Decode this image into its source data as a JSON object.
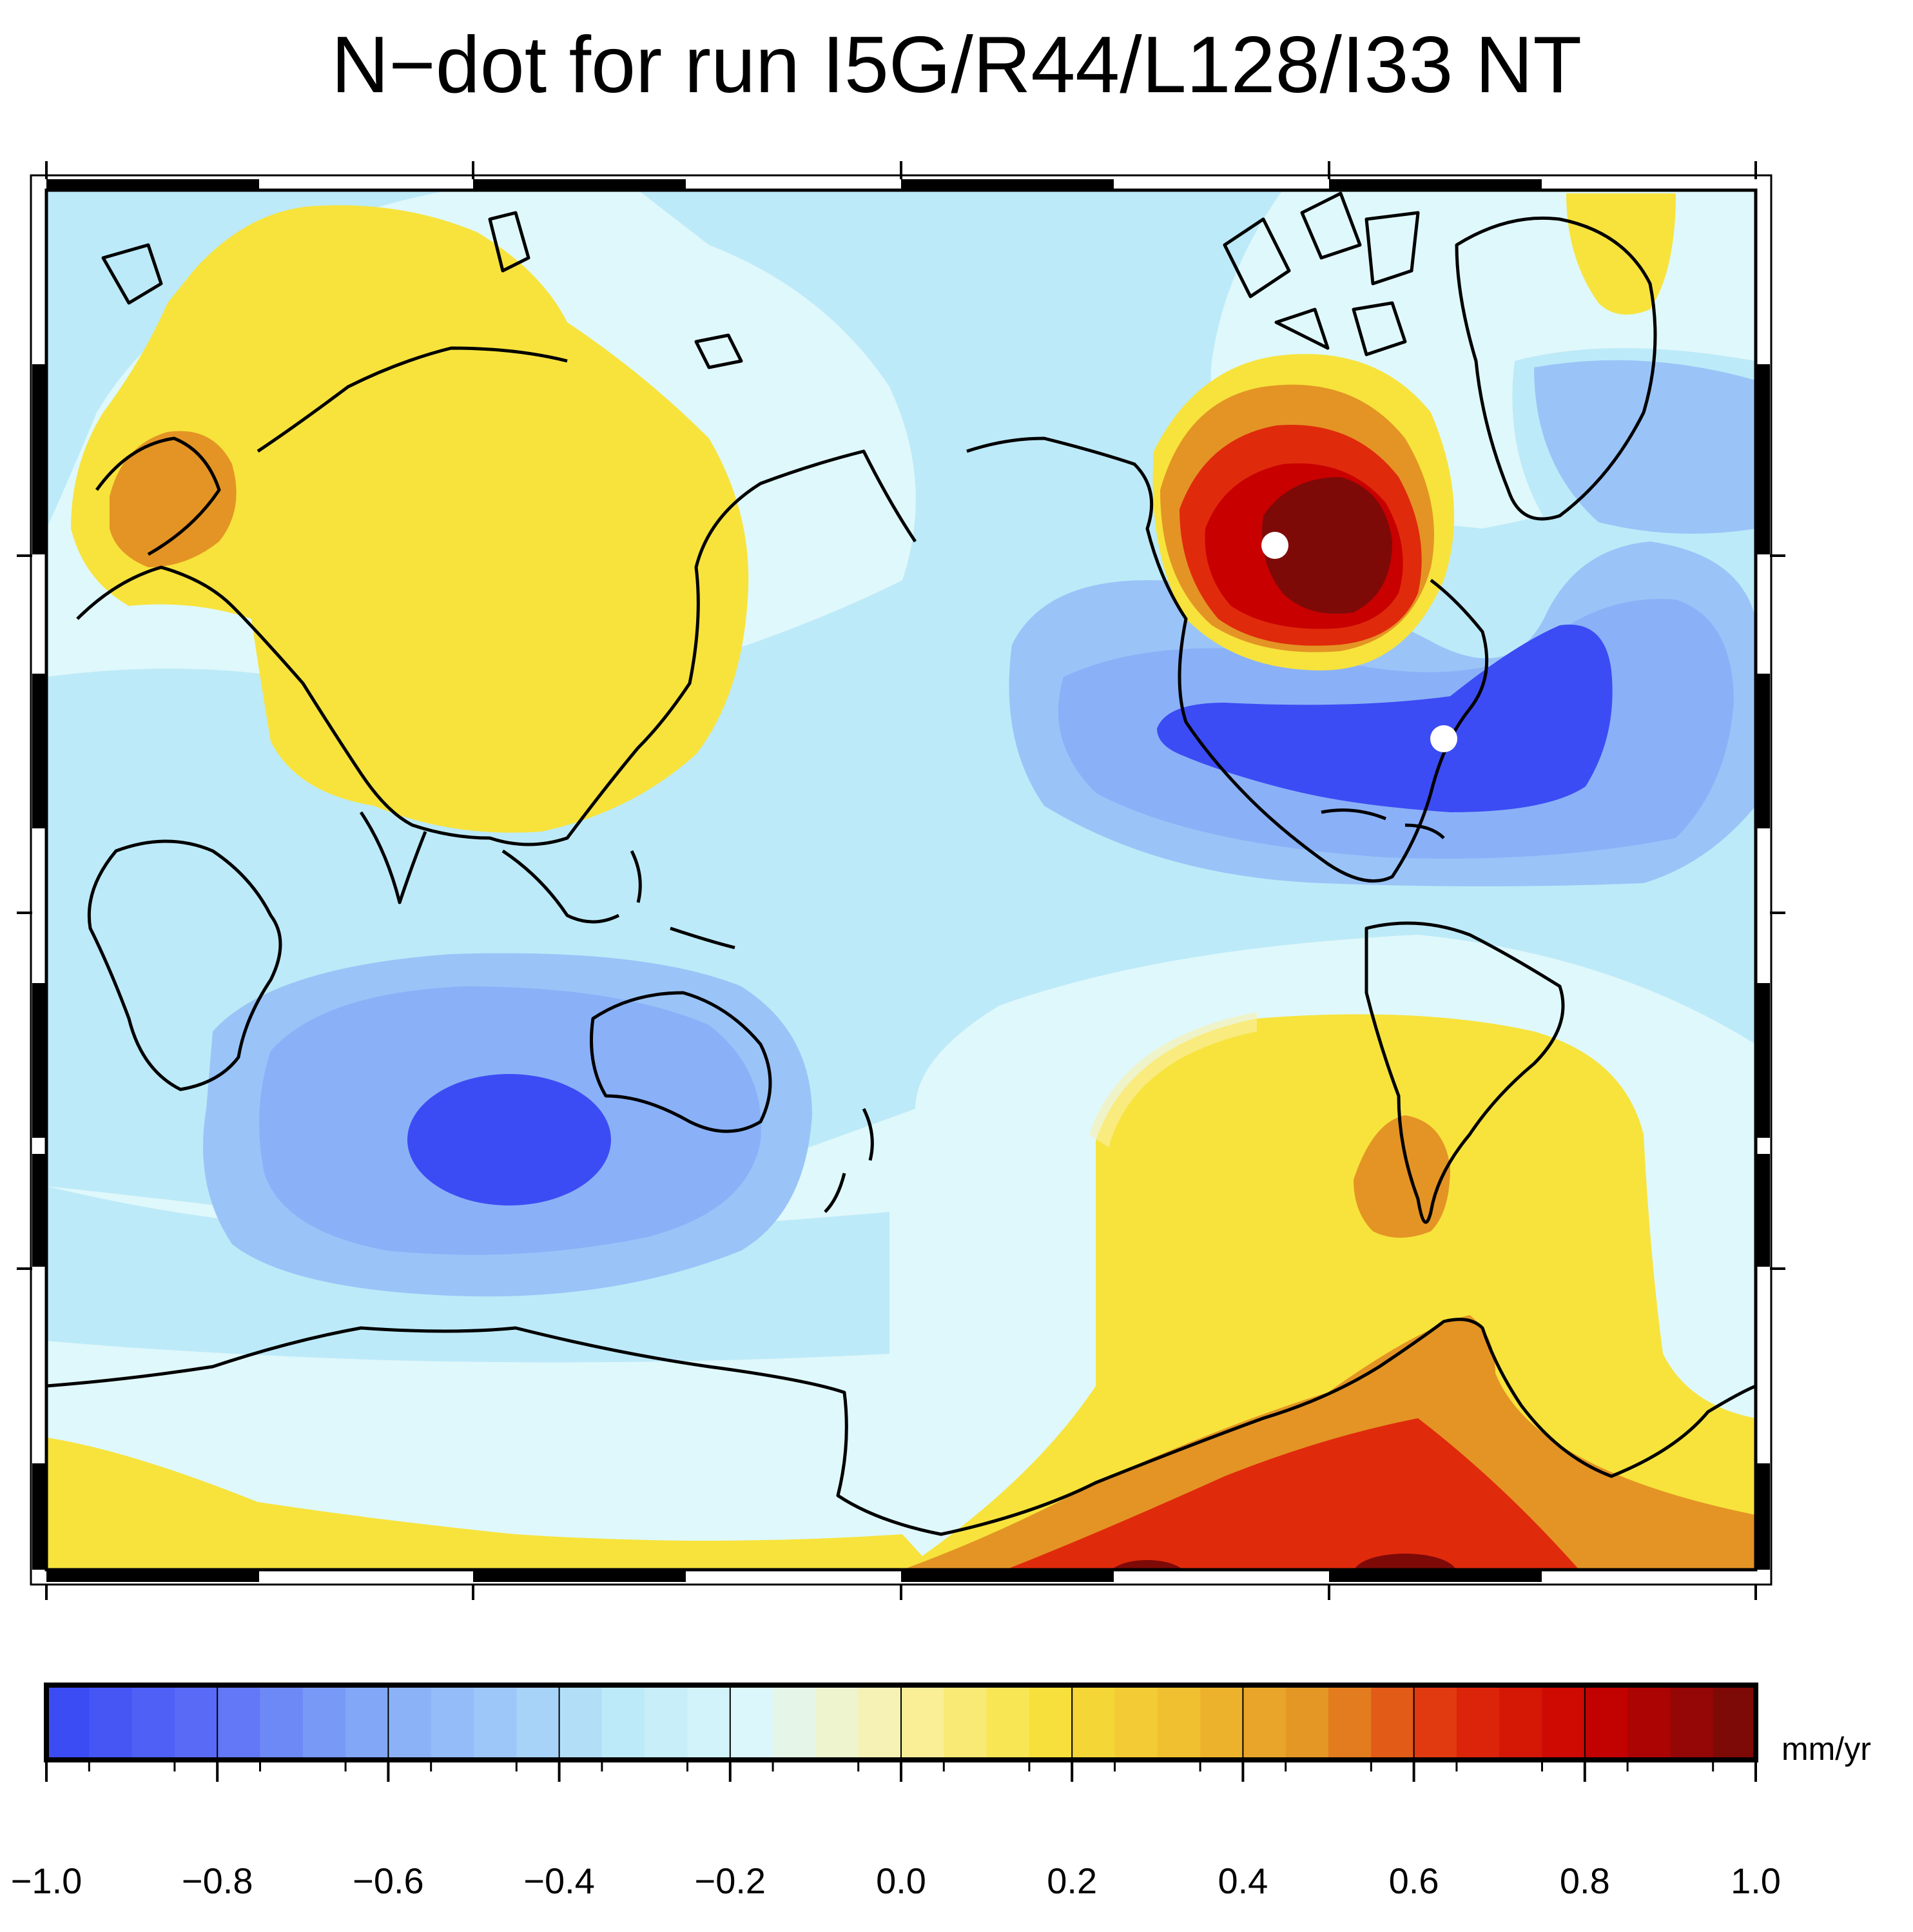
{
  "title": "N−dot for run I5G/R44/L128/I33 NT",
  "colorbar": {
    "unit": "mm/yr",
    "ticks": [
      "−1.0",
      "−0.8",
      "−0.6",
      "−0.4",
      "−0.2",
      "0.0",
      "0.2",
      "0.4",
      "0.6",
      "0.8",
      "1.0"
    ],
    "range": [
      -1.0,
      1.0
    ],
    "palette": [
      "#3c4cf4",
      "#5a6cf6",
      "#7ea2f6",
      "#9ac4f8",
      "#bdeaf8",
      "#dff8fb",
      "#faf0a8",
      "#f7e33c",
      "#f1c030",
      "#e49424",
      "#e02a0c",
      "#c80000",
      "#7e0a08"
    ]
  },
  "features": {
    "markers": [
      "marker-hudson-bay",
      "marker-western-atlantic"
    ],
    "map_frame": "map-frame"
  }
}
